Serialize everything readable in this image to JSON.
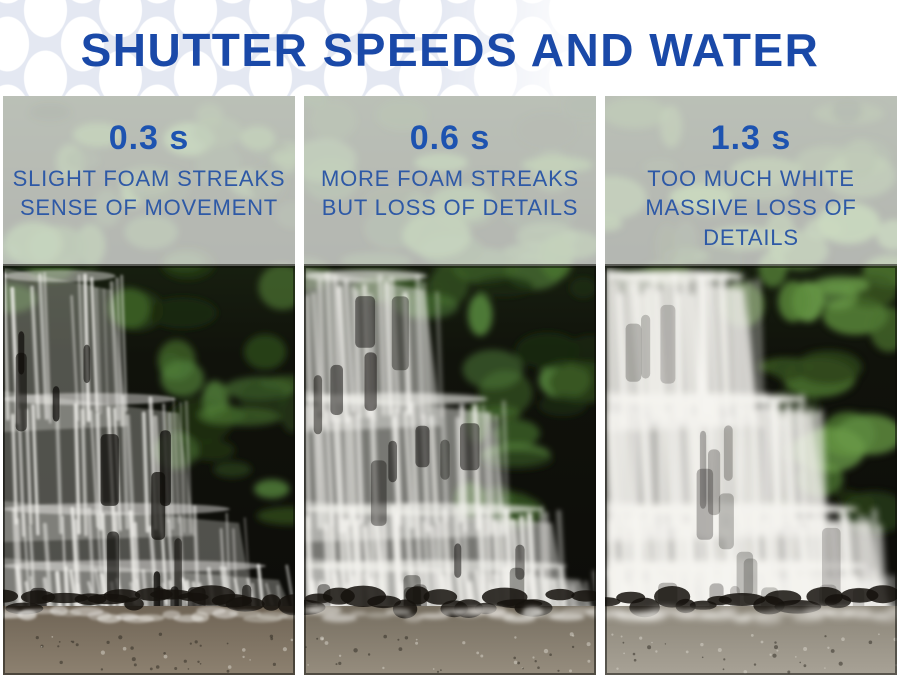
{
  "title": "SHUTTER SPEEDS AND WATER",
  "colors": {
    "page_bg": "#ffffff",
    "pattern_bg": "#e4e8f2",
    "pattern_dot": "#ffffff",
    "title_blue": "#1a49a8",
    "speed_blue": "#1d53b0",
    "caption_blue": "#2e59a6"
  },
  "panels": [
    {
      "shutter_speed": "0.3 s",
      "caption_lines": [
        "SLIGHT FOAM STREAKS",
        "SENSE OF MOVEMENT"
      ],
      "photo": "waterfall-photo-slight-streaks",
      "blur_level": 1
    },
    {
      "shutter_speed": "0.6 s",
      "caption_lines": [
        "MORE FOAM STREAKS",
        "BUT LOSS OF DETAILS"
      ],
      "photo": "waterfall-photo-more-streaks",
      "blur_level": 2
    },
    {
      "shutter_speed": "1.3 s",
      "caption_lines": [
        "TOO MUCH WHITE",
        "MASSIVE LOSS OF",
        "DETAILS"
      ],
      "photo": "waterfall-photo-mostly-white",
      "blur_level": 3
    }
  ]
}
